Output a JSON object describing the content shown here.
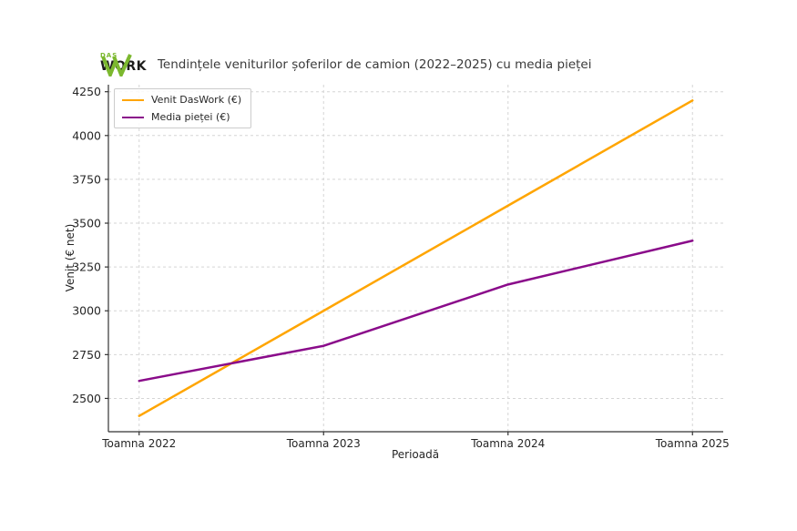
{
  "logo": {
    "brand_top": "DAS",
    "brand_bottom": "WORK",
    "green": "#7cb82f",
    "text_color": "#1d1d1b"
  },
  "chart_data": {
    "type": "line",
    "title": "Tendințele veniturilor șoferilor de camion (2022–2025) cu media pieței",
    "xlabel": "Perioadă",
    "ylabel": "Venit (€ net)",
    "categories": [
      "Toamna 2022",
      "Toamna 2023",
      "Toamna 2024",
      "Toamna 2025"
    ],
    "series": [
      {
        "name": "Venit DasWork (€)",
        "color": "#ffa500",
        "values": [
          2400,
          3000,
          3600,
          4200
        ]
      },
      {
        "name": "Media pieței (€)",
        "color": "#8a0b8a",
        "values": [
          2600,
          2800,
          3150,
          3400
        ]
      }
    ],
    "y_ticks": [
      2500,
      2750,
      3000,
      3250,
      3500,
      3750,
      4000,
      4250
    ],
    "ylim": [
      2310,
      4290
    ],
    "grid": true,
    "grid_color": "#d5d5d5",
    "spine_color": "#333333",
    "tick_label_color": "#262626",
    "legend_position": "upper left"
  }
}
